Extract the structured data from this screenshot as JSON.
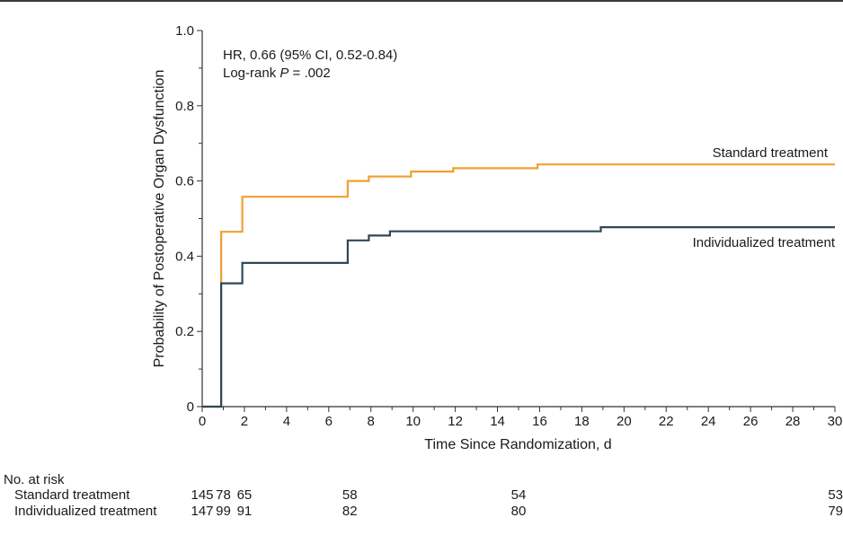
{
  "chart_data": {
    "type": "line",
    "subtype": "kaplan-meier step",
    "title": "",
    "xlabel": "Time Since Randomization, d",
    "ylabel": "Probability of Postoperative Organ Dysfunction",
    "xlim": [
      0,
      30
    ],
    "ylim": [
      0,
      1.0
    ],
    "xticks": [
      "0",
      "2",
      "4",
      "6",
      "8",
      "10",
      "12",
      "14",
      "16",
      "18",
      "20",
      "22",
      "24",
      "26",
      "28",
      "30"
    ],
    "yticks": [
      "0",
      "0.2",
      "0.4",
      "0.6",
      "0.8",
      "1.0"
    ],
    "grid": false,
    "annotation": {
      "hr_text": "HR, 0.66 (95% CI, 0.52-0.84)",
      "logrank_prefix": "Log-rank ",
      "logrank_p": "P",
      "logrank_value": " = .002"
    },
    "series": [
      {
        "name": "Standard treatment",
        "color": "#f0a030",
        "points": [
          [
            0,
            0
          ],
          [
            0.9,
            0
          ],
          [
            0.9,
            0.465
          ],
          [
            1.9,
            0.465
          ],
          [
            1.9,
            0.558
          ],
          [
            6.9,
            0.558
          ],
          [
            6.9,
            0.6
          ],
          [
            7.9,
            0.6
          ],
          [
            7.9,
            0.612
          ],
          [
            9.9,
            0.612
          ],
          [
            9.9,
            0.625
          ],
          [
            11.9,
            0.625
          ],
          [
            11.9,
            0.634
          ],
          [
            15.9,
            0.634
          ],
          [
            15.9,
            0.644
          ],
          [
            30,
            0.644
          ]
        ]
      },
      {
        "name": "Individualized treatment",
        "color": "#2f4858",
        "points": [
          [
            0,
            0
          ],
          [
            0.9,
            0
          ],
          [
            0.9,
            0.328
          ],
          [
            1.9,
            0.328
          ],
          [
            1.9,
            0.382
          ],
          [
            6.9,
            0.382
          ],
          [
            6.9,
            0.442
          ],
          [
            7.9,
            0.442
          ],
          [
            7.9,
            0.455
          ],
          [
            8.9,
            0.455
          ],
          [
            8.9,
            0.466
          ],
          [
            18.9,
            0.466
          ],
          [
            18.9,
            0.477
          ],
          [
            30,
            0.477
          ]
        ]
      }
    ],
    "risk_table": {
      "title": "No. at risk",
      "rows": [
        {
          "label": "Standard treatment",
          "values": [
            "145",
            "78",
            "65",
            "58",
            "54",
            "53"
          ]
        },
        {
          "label": "Individualized treatment",
          "values": [
            "147",
            "99",
            "91",
            "82",
            "80",
            "79"
          ]
        }
      ],
      "x": [
        0,
        1,
        2,
        7,
        15,
        30
      ]
    }
  }
}
